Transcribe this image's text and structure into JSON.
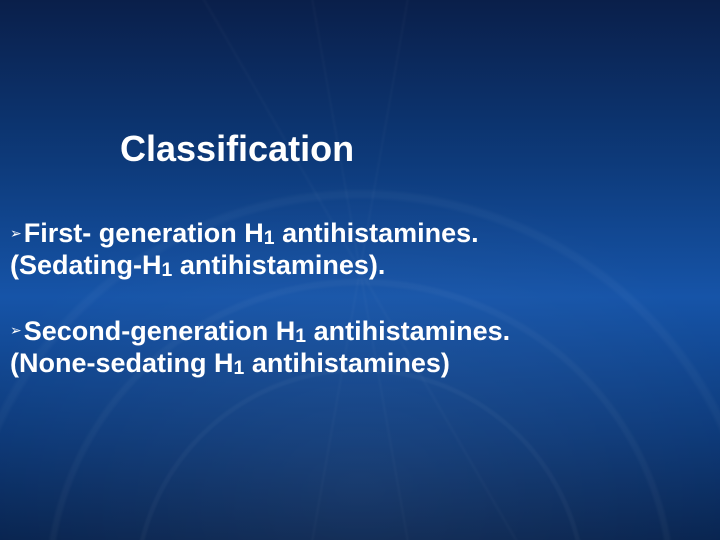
{
  "slide": {
    "background": {
      "gradient_top": "#0a1f4a",
      "gradient_mid": "#1654a8",
      "gradient_bottom": "#082450",
      "grid_line_color": "rgba(255,255,255,0.03)"
    },
    "text_color": "#ffffff",
    "title": "Classification",
    "title_fontsize_pt": 27,
    "body_fontsize_pt": 20,
    "font_family": "Verdana",
    "bullet_glyph": "➢",
    "items": [
      {
        "lead_pre": "First- generation H",
        "lead_sub": "1",
        "lead_post": " antihistamines.",
        "paren_pre": "(Sedating-H",
        "paren_sub": "1",
        "paren_post": " antihistamines)."
      },
      {
        "lead_pre": "Second-generation H",
        "lead_sub": "1",
        "lead_post": " antihistamines.",
        "paren_pre": "(None-sedating H",
        "paren_sub": "1",
        "paren_post": " antihistamines)"
      }
    ]
  }
}
